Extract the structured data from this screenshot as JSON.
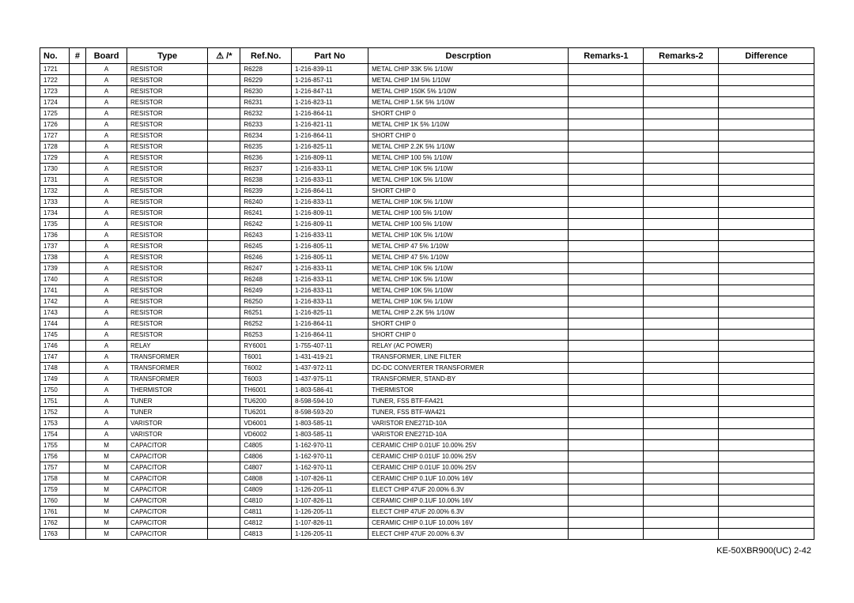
{
  "headers": {
    "no": "No.",
    "hash": "#",
    "board": "Board",
    "type": "Type",
    "sym": "⚠ /*",
    "refno": "Ref.No.",
    "partno": "Part No",
    "desc": "Descrption",
    "rem1": "Remarks-1",
    "rem2": "Remarks-2",
    "diff": "Difference"
  },
  "rows": [
    {
      "no": "1721",
      "hash": "",
      "board": "A",
      "type": "RESISTOR",
      "sym": "",
      "refno": "R6228",
      "partno": "1-216-839-11",
      "desc": "METAL CHIP    33K   5%    1/10W",
      "rem1": "",
      "rem2": "",
      "diff": ""
    },
    {
      "no": "1722",
      "hash": "",
      "board": "A",
      "type": "RESISTOR",
      "sym": "",
      "refno": "R6229",
      "partno": "1-216-857-11",
      "desc": "METAL CHIP    1M    5%    1/10W",
      "rem1": "",
      "rem2": "",
      "diff": ""
    },
    {
      "no": "1723",
      "hash": "",
      "board": "A",
      "type": "RESISTOR",
      "sym": "",
      "refno": "R6230",
      "partno": "1-216-847-11",
      "desc": "METAL CHIP    150K 5%    1/10W",
      "rem1": "",
      "rem2": "",
      "diff": ""
    },
    {
      "no": "1724",
      "hash": "",
      "board": "A",
      "type": "RESISTOR",
      "sym": "",
      "refno": "R6231",
      "partno": "1-216-823-11",
      "desc": "METAL CHIP    1.5K 5%    1/10W",
      "rem1": "",
      "rem2": "",
      "diff": ""
    },
    {
      "no": "1725",
      "hash": "",
      "board": "A",
      "type": "RESISTOR",
      "sym": "",
      "refno": "R6232",
      "partno": "1-216-864-11",
      "desc": "SHORT CHIP    0",
      "rem1": "",
      "rem2": "",
      "diff": ""
    },
    {
      "no": "1726",
      "hash": "",
      "board": "A",
      "type": "RESISTOR",
      "sym": "",
      "refno": "R6233",
      "partno": "1-216-821-11",
      "desc": "METAL CHIP    1K    5%    1/10W",
      "rem1": "",
      "rem2": "",
      "diff": ""
    },
    {
      "no": "1727",
      "hash": "",
      "board": "A",
      "type": "RESISTOR",
      "sym": "",
      "refno": "R6234",
      "partno": "1-216-864-11",
      "desc": "SHORT CHIP    0",
      "rem1": "",
      "rem2": "",
      "diff": ""
    },
    {
      "no": "1728",
      "hash": "",
      "board": "A",
      "type": "RESISTOR",
      "sym": "",
      "refno": "R6235",
      "partno": "1-216-825-11",
      "desc": "METAL CHIP    2.2K 5%    1/10W",
      "rem1": "",
      "rem2": "",
      "diff": ""
    },
    {
      "no": "1729",
      "hash": "",
      "board": "A",
      "type": "RESISTOR",
      "sym": "",
      "refno": "R6236",
      "partno": "1-216-809-11",
      "desc": "METAL CHIP    100   5%    1/10W",
      "rem1": "",
      "rem2": "",
      "diff": ""
    },
    {
      "no": "1730",
      "hash": "",
      "board": "A",
      "type": "RESISTOR",
      "sym": "",
      "refno": "R6237",
      "partno": "1-216-833-11",
      "desc": "METAL CHIP    10K  5%    1/10W",
      "rem1": "",
      "rem2": "",
      "diff": ""
    },
    {
      "no": "1731",
      "hash": "",
      "board": "A",
      "type": "RESISTOR",
      "sym": "",
      "refno": "R6238",
      "partno": "1-216-833-11",
      "desc": "METAL CHIP    10K  5%    1/10W",
      "rem1": "",
      "rem2": "",
      "diff": ""
    },
    {
      "no": "1732",
      "hash": "",
      "board": "A",
      "type": "RESISTOR",
      "sym": "",
      "refno": "R6239",
      "partno": "1-216-864-11",
      "desc": "SHORT CHIP    0",
      "rem1": "",
      "rem2": "",
      "diff": ""
    },
    {
      "no": "1733",
      "hash": "",
      "board": "A",
      "type": "RESISTOR",
      "sym": "",
      "refno": "R6240",
      "partno": "1-216-833-11",
      "desc": "METAL CHIP    10K  5%    1/10W",
      "rem1": "",
      "rem2": "",
      "diff": ""
    },
    {
      "no": "1734",
      "hash": "",
      "board": "A",
      "type": "RESISTOR",
      "sym": "",
      "refno": "R6241",
      "partno": "1-216-809-11",
      "desc": "METAL CHIP    100   5%    1/10W",
      "rem1": "",
      "rem2": "",
      "diff": ""
    },
    {
      "no": "1735",
      "hash": "",
      "board": "A",
      "type": "RESISTOR",
      "sym": "",
      "refno": "R6242",
      "partno": "1-216-809-11",
      "desc": "METAL CHIP    100   5%    1/10W",
      "rem1": "",
      "rem2": "",
      "diff": ""
    },
    {
      "no": "1736",
      "hash": "",
      "board": "A",
      "type": "RESISTOR",
      "sym": "",
      "refno": "R6243",
      "partno": "1-216-833-11",
      "desc": "METAL CHIP    10K  5%    1/10W",
      "rem1": "",
      "rem2": "",
      "diff": ""
    },
    {
      "no": "1737",
      "hash": "",
      "board": "A",
      "type": "RESISTOR",
      "sym": "",
      "refno": "R6245",
      "partno": "1-216-805-11",
      "desc": "METAL CHIP    47    5%    1/10W",
      "rem1": "",
      "rem2": "",
      "diff": ""
    },
    {
      "no": "1738",
      "hash": "",
      "board": "A",
      "type": "RESISTOR",
      "sym": "",
      "refno": "R6246",
      "partno": "1-216-805-11",
      "desc": "METAL CHIP    47    5%    1/10W",
      "rem1": "",
      "rem2": "",
      "diff": ""
    },
    {
      "no": "1739",
      "hash": "",
      "board": "A",
      "type": "RESISTOR",
      "sym": "",
      "refno": "R6247",
      "partno": "1-216-833-11",
      "desc": "METAL CHIP    10K  5%    1/10W",
      "rem1": "",
      "rem2": "",
      "diff": ""
    },
    {
      "no": "1740",
      "hash": "",
      "board": "A",
      "type": "RESISTOR",
      "sym": "",
      "refno": "R6248",
      "partno": "1-216-833-11",
      "desc": "METAL CHIP    10K  5%    1/10W",
      "rem1": "",
      "rem2": "",
      "diff": ""
    },
    {
      "no": "1741",
      "hash": "",
      "board": "A",
      "type": "RESISTOR",
      "sym": "",
      "refno": "R6249",
      "partno": "1-216-833-11",
      "desc": "METAL CHIP    10K  5%    1/10W",
      "rem1": "",
      "rem2": "",
      "diff": ""
    },
    {
      "no": "1742",
      "hash": "",
      "board": "A",
      "type": "RESISTOR",
      "sym": "",
      "refno": "R6250",
      "partno": "1-216-833-11",
      "desc": "METAL CHIP    10K  5%    1/10W",
      "rem1": "",
      "rem2": "",
      "diff": ""
    },
    {
      "no": "1743",
      "hash": "",
      "board": "A",
      "type": "RESISTOR",
      "sym": "",
      "refno": "R6251",
      "partno": "1-216-825-11",
      "desc": "METAL CHIP    2.2K 5%    1/10W",
      "rem1": "",
      "rem2": "",
      "diff": ""
    },
    {
      "no": "1744",
      "hash": "",
      "board": "A",
      "type": "RESISTOR",
      "sym": "",
      "refno": "R6252",
      "partno": "1-216-864-11",
      "desc": "SHORT CHIP    0",
      "rem1": "",
      "rem2": "",
      "diff": ""
    },
    {
      "no": "1745",
      "hash": "",
      "board": "A",
      "type": "RESISTOR",
      "sym": "",
      "refno": "R6253",
      "partno": "1-216-864-11",
      "desc": "SHORT CHIP    0",
      "rem1": "",
      "rem2": "",
      "diff": ""
    },
    {
      "no": "1746",
      "hash": "",
      "board": "A",
      "type": "RELAY",
      "sym": "",
      "refno": "RY6001",
      "partno": "1-755-407-11",
      "desc": "RELAY (AC POWER)",
      "rem1": "",
      "rem2": "",
      "diff": ""
    },
    {
      "no": "1747",
      "hash": "",
      "board": "A",
      "type": "TRANSFORMER",
      "sym": "",
      "refno": "T6001",
      "partno": "1-431-419-21",
      "desc": "TRANSFORMER, LINE FILTER",
      "rem1": "",
      "rem2": "",
      "diff": ""
    },
    {
      "no": "1748",
      "hash": "",
      "board": "A",
      "type": "TRANSFORMER",
      "sym": "",
      "refno": "T6002",
      "partno": "1-437-972-11",
      "desc": "DC-DC CONVERTER TRANSFORMER",
      "rem1": "",
      "rem2": "",
      "diff": ""
    },
    {
      "no": "1749",
      "hash": "",
      "board": "A",
      "type": "TRANSFORMER",
      "sym": "",
      "refno": "T6003",
      "partno": "1-437-975-11",
      "desc": "TRANSFORMER, STAND-BY",
      "rem1": "",
      "rem2": "",
      "diff": ""
    },
    {
      "no": "1750",
      "hash": "",
      "board": "A",
      "type": "THERMISTOR",
      "sym": "",
      "refno": "TH6001",
      "partno": "1-803-586-41",
      "desc": "THERMISTOR",
      "rem1": "",
      "rem2": "",
      "diff": ""
    },
    {
      "no": "1751",
      "hash": "",
      "board": "A",
      "type": "TUNER",
      "sym": "",
      "refno": "TU6200",
      "partno": "8-598-594-10",
      "desc": "TUNER, FSS BTF-FA421",
      "rem1": "",
      "rem2": "",
      "diff": ""
    },
    {
      "no": "1752",
      "hash": "",
      "board": "A",
      "type": "TUNER",
      "sym": "",
      "refno": "TU6201",
      "partno": "8-598-593-20",
      "desc": "TUNER, FSS BTF-WA421",
      "rem1": "",
      "rem2": "",
      "diff": ""
    },
    {
      "no": "1753",
      "hash": "",
      "board": "A",
      "type": "VARISTOR",
      "sym": "",
      "refno": "VD6001",
      "partno": "1-803-585-11",
      "desc": "VARISTOR ENE271D-10A",
      "rem1": "",
      "rem2": "",
      "diff": ""
    },
    {
      "no": "1754",
      "hash": "",
      "board": "A",
      "type": "VARISTOR",
      "sym": "",
      "refno": "VD6002",
      "partno": "1-803-585-11",
      "desc": "VARISTOR ENE271D-10A",
      "rem1": "",
      "rem2": "",
      "diff": ""
    },
    {
      "no": "1755",
      "hash": "",
      "board": "M",
      "type": "CAPACITOR",
      "sym": "",
      "refno": "C4805",
      "partno": "1-162-970-11",
      "desc": "CERAMIC CHIP 0.01UF       10.00% 25V",
      "rem1": "",
      "rem2": "",
      "diff": ""
    },
    {
      "no": "1756",
      "hash": "",
      "board": "M",
      "type": "CAPACITOR",
      "sym": "",
      "refno": "C4806",
      "partno": "1-162-970-11",
      "desc": "CERAMIC CHIP 0.01UF       10.00% 25V",
      "rem1": "",
      "rem2": "",
      "diff": ""
    },
    {
      "no": "1757",
      "hash": "",
      "board": "M",
      "type": "CAPACITOR",
      "sym": "",
      "refno": "C4807",
      "partno": "1-162-970-11",
      "desc": "CERAMIC CHIP 0.01UF       10.00% 25V",
      "rem1": "",
      "rem2": "",
      "diff": ""
    },
    {
      "no": "1758",
      "hash": "",
      "board": "M",
      "type": "CAPACITOR",
      "sym": "",
      "refno": "C4808",
      "partno": "1-107-826-11",
      "desc": "CERAMIC CHIP 0.1UF        10.00% 16V",
      "rem1": "",
      "rem2": "",
      "diff": ""
    },
    {
      "no": "1759",
      "hash": "",
      "board": "M",
      "type": "CAPACITOR",
      "sym": "",
      "refno": "C4809",
      "partno": "1-126-205-11",
      "desc": "ELECT CHIP   47UF         20.00% 6.3V",
      "rem1": "",
      "rem2": "",
      "diff": ""
    },
    {
      "no": "1760",
      "hash": "",
      "board": "M",
      "type": "CAPACITOR",
      "sym": "",
      "refno": "C4810",
      "partno": "1-107-826-11",
      "desc": "CERAMIC CHIP 0.1UF        10.00% 16V",
      "rem1": "",
      "rem2": "",
      "diff": ""
    },
    {
      "no": "1761",
      "hash": "",
      "board": "M",
      "type": "CAPACITOR",
      "sym": "",
      "refno": "C4811",
      "partno": "1-126-205-11",
      "desc": "ELECT CHIP   47UF         20.00% 6.3V",
      "rem1": "",
      "rem2": "",
      "diff": ""
    },
    {
      "no": "1762",
      "hash": "",
      "board": "M",
      "type": "CAPACITOR",
      "sym": "",
      "refno": "C4812",
      "partno": "1-107-826-11",
      "desc": "CERAMIC CHIP 0.1UF        10.00% 16V",
      "rem1": "",
      "rem2": "",
      "diff": ""
    },
    {
      "no": "1763",
      "hash": "",
      "board": "M",
      "type": "CAPACITOR",
      "sym": "",
      "refno": "C4813",
      "partno": "1-126-205-11",
      "desc": "ELECT CHIP   47UF         20.00% 6.3V",
      "rem1": "",
      "rem2": "",
      "diff": ""
    }
  ],
  "footer": "KE-50XBR900(UC)    2-42"
}
